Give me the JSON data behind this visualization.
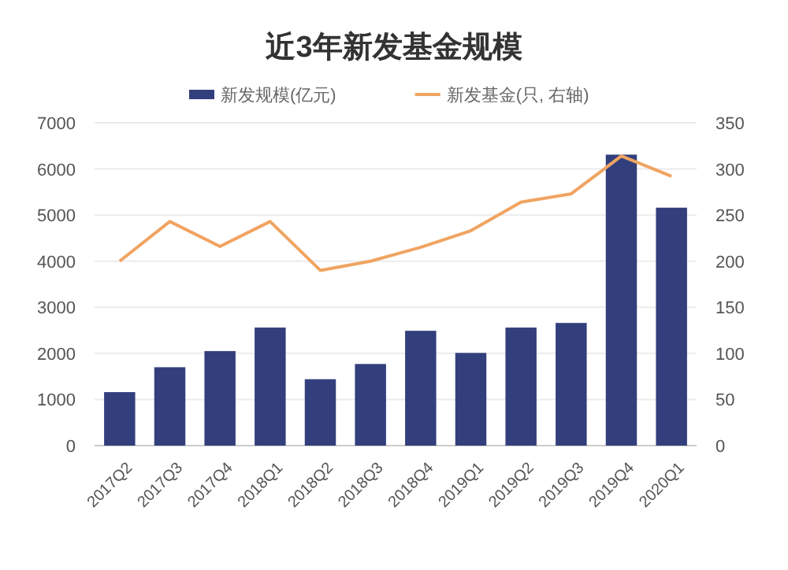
{
  "chart_data": {
    "type": "bar",
    "title": "近3年新发基金规模",
    "categories": [
      "2017Q2",
      "2017Q3",
      "2017Q4",
      "2018Q1",
      "2018Q2",
      "2018Q3",
      "2018Q4",
      "2019Q1",
      "2019Q2",
      "2019Q3",
      "2019Q4",
      "2020Q1"
    ],
    "series": [
      {
        "name": "新发规模(亿元)",
        "color": "#333f7c",
        "values": [
          1160,
          1700,
          2050,
          2560,
          1440,
          1770,
          2490,
          2010,
          2560,
          2660,
          6310,
          5160
        ]
      },
      {
        "name": "新发基金(只, 右轴)",
        "type": "line",
        "axis": "y2",
        "color": "#f0a461",
        "values": [
          200,
          243,
          216,
          243,
          190,
          200,
          215,
          233,
          264,
          273,
          314,
          292
        ]
      }
    ],
    "ylim": [
      0,
      7000
    ],
    "yticks": [
      0,
      1000,
      2000,
      3000,
      4000,
      5000,
      6000,
      7000
    ],
    "y2lim": [
      0,
      350
    ],
    "y2ticks": [
      0,
      50,
      100,
      150,
      200,
      250,
      300,
      350
    ],
    "grid": "y",
    "legend": "top",
    "marker": "none",
    "line_style": "solid"
  }
}
